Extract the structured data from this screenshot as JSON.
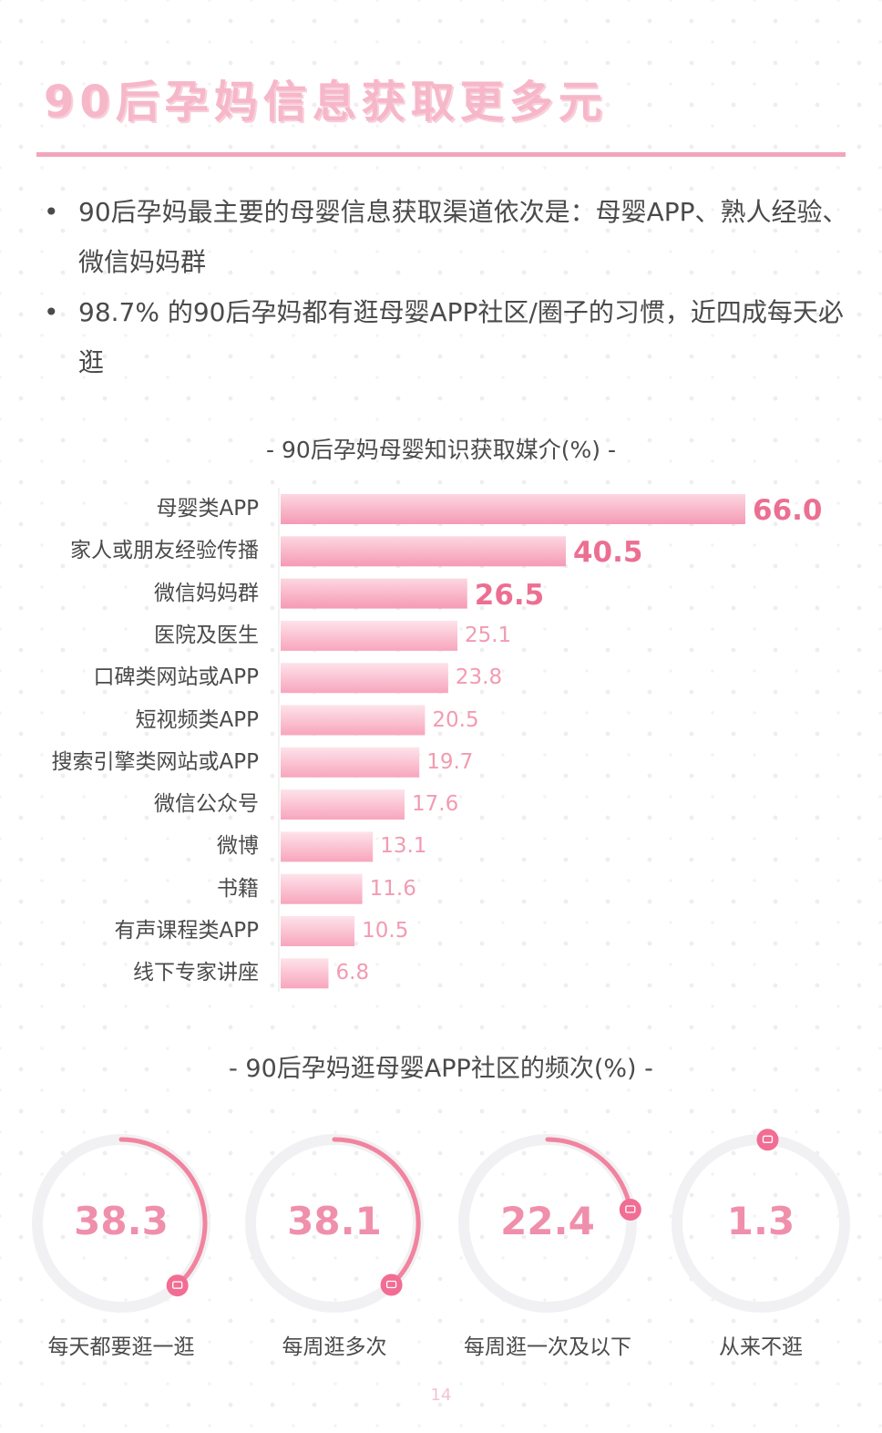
{
  "header": {
    "title": "90后孕妈信息获取更多元"
  },
  "bullets": [
    "90后孕妈最主要的母婴信息获取渠道依次是：母婴APP、熟人经验、微信妈妈群",
    "98.7% 的90后孕妈都有逛母婴APP社区/圈子的习惯，近四成每天必逛"
  ],
  "colors": {
    "accent": "#f2a5bb",
    "bar_light": "#fde3ea",
    "bar_dark": "#f8a5bd",
    "value_text": "#ec6f92"
  },
  "chart_data": [
    {
      "type": "bar",
      "orientation": "horizontal",
      "title": "-   90后孕妈母婴知识获取媒介(%)   -",
      "categories": [
        "母婴类APP",
        "家人或朋友经验传播",
        "微信妈妈群",
        "医院及医生",
        "口碑类网站或APP",
        "短视频类APP",
        "搜索引擎类网站或APP",
        "微信公众号",
        "微博",
        "书籍",
        "有声课程类APP",
        "线下专家讲座"
      ],
      "values": [
        66.0,
        40.5,
        26.5,
        25.1,
        23.8,
        20.5,
        19.7,
        17.6,
        13.1,
        11.6,
        10.5,
        6.8
      ],
      "value_labels": [
        "66.0",
        "40.5",
        "26.5",
        "25.1",
        "23.8",
        "20.5",
        "19.7",
        "17.6",
        "13.1",
        "11.6",
        "10.5",
        "6.8"
      ],
      "highlight_top": 3,
      "xlim": [
        0,
        66
      ]
    },
    {
      "type": "pie",
      "style": "donut-gauge",
      "title": "-   90后孕妈逛母婴APP社区的频次(%)   -",
      "categories": [
        "每天都要逛一逛",
        "每周逛多次",
        "每周逛一次及以下",
        "从来不逛"
      ],
      "values": [
        38.3,
        38.1,
        22.4,
        1.3
      ],
      "value_labels": [
        "38.3",
        "38.1",
        "22.4",
        "1.3"
      ]
    }
  ],
  "footer": {
    "page_number": "14"
  }
}
